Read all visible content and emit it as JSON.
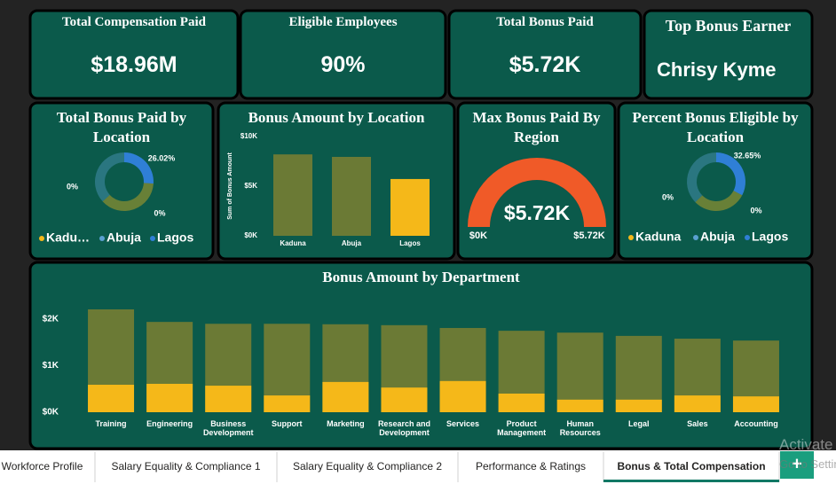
{
  "kpis": [
    {
      "title": "Total Compensation Paid",
      "value": "$18.96M"
    },
    {
      "title": "Eligible Employees",
      "value": "90%"
    },
    {
      "title": "Total Bonus Paid",
      "value": "$5.72K"
    },
    {
      "title": "Top Bonus Earner",
      "value": "Chrisy Kyme"
    }
  ],
  "chart_data": [
    {
      "type": "donut",
      "title": "Total Bonus Paid by Location",
      "categories": [
        "Kadu…",
        "Abuja",
        "Lagos"
      ],
      "colors": [
        "#f5b819",
        "#5aa0d0",
        "#2f7fd6"
      ],
      "values": [
        37.2,
        36.78,
        26.02
      ],
      "highlight": {
        "values": [
          0,
          0,
          26.02
        ],
        "value_labels": [
          "0%",
          "0%",
          "26.02%"
        ]
      }
    },
    {
      "type": "bar",
      "title": "Bonus Amount by Location",
      "ylabel": "Sum of Bonus Amount",
      "categories": [
        "Kaduna",
        "Abuja",
        "Lagos"
      ],
      "values": [
        8200,
        7950,
        5720
      ],
      "colors": [
        "#6b7a35",
        "#6b7a35",
        "#f5b819"
      ],
      "ylim": [
        0,
        10000
      ],
      "yticks": [
        {
          "value": 0,
          "label": "$0K"
        },
        {
          "value": 5000,
          "label": "$5K"
        },
        {
          "value": 10000,
          "label": "$10K"
        }
      ]
    },
    {
      "type": "gauge",
      "title": "Max Bonus Paid By Region",
      "value": 5720,
      "value_label": "$5.72K",
      "min": 0,
      "max": 5720,
      "min_label": "$0K",
      "max_label": "$5.72K",
      "color": "#f05a28"
    },
    {
      "type": "donut",
      "title": "Percent Bonus Eligible by Location",
      "categories": [
        "Kaduna",
        "Abuja",
        "Lagos"
      ],
      "colors": [
        "#f5b819",
        "#5aa0d0",
        "#2f7fd6"
      ],
      "values": [
        30,
        37.35,
        32.65
      ],
      "highlight": {
        "values": [
          0,
          0,
          32.65
        ],
        "value_labels": [
          "0%",
          "0%",
          "32.65%"
        ]
      }
    },
    {
      "type": "overlay-bar",
      "title": "Bonus Amount by Department",
      "categories": [
        "Training",
        "Engineering",
        "Business Development",
        "Support",
        "Marketing",
        "Research and Development",
        "Services",
        "Product Management",
        "Human Resources",
        "Legal",
        "Sales",
        "Accounting"
      ],
      "series": [
        {
          "color": "#6b7a35",
          "values": [
            2210,
            1940,
            1900,
            1900,
            1890,
            1870,
            1810,
            1750,
            1710,
            1640,
            1580,
            1540
          ]
        },
        {
          "color": "#f5b819",
          "values": [
            590,
            610,
            570,
            360,
            650,
            530,
            670,
            400,
            270,
            270,
            360,
            340
          ]
        }
      ],
      "ylim": [
        0,
        2300
      ],
      "yticks": [
        {
          "value": 0,
          "label": "$0K"
        },
        {
          "value": 1000,
          "label": "$1K"
        },
        {
          "value": 2000,
          "label": "$2K"
        }
      ]
    }
  ],
  "tabs": [
    "Workforce Profile",
    "Salary Equality & Compliance 1",
    "Salary Equality & Compliance 2",
    "Performance & Ratings",
    "Bonus & Total Compensation"
  ],
  "active_tab": 4,
  "add_tab": "+",
  "watermark": [
    "Activate Windows",
    "Go to Settings to activate Windows."
  ]
}
